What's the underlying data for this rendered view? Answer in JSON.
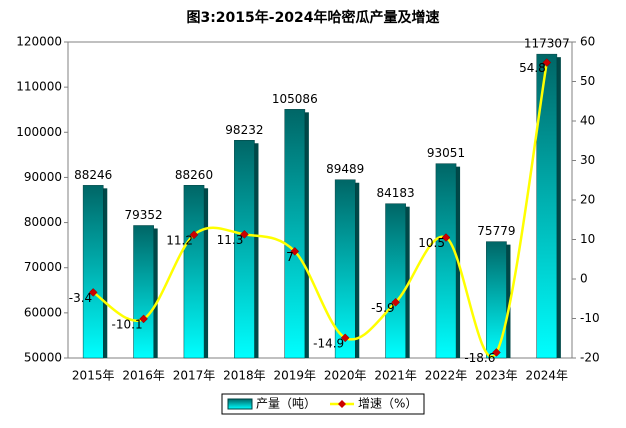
{
  "chart_data": {
    "type": "bar",
    "title": "图3:2015年-2024年哈密瓜产量及增速",
    "categories": [
      "2015年",
      "2016年",
      "2017年",
      "2018年",
      "2019年",
      "2020年",
      "2021年",
      "2022年",
      "2023年",
      "2024年"
    ],
    "series": [
      {
        "name": "产量（吨）",
        "color": "#00e5e5",
        "values": [
          88246,
          79352,
          88260,
          98232,
          105086,
          89489,
          84183,
          93051,
          75779,
          117307
        ]
      },
      {
        "name": "增速（%）",
        "color": "#ffff00",
        "marker_color": "#cc0000",
        "axis": "y2",
        "values": [
          -3.4,
          -10.1,
          11.2,
          11.3,
          7,
          -14.9,
          -5.9,
          10.5,
          -18.6,
          54.8
        ]
      }
    ],
    "ylim": [
      50000,
      120000
    ],
    "yticks": [
      50000,
      60000,
      70000,
      80000,
      90000,
      100000,
      110000,
      120000
    ],
    "y2lim": [
      -20,
      60
    ],
    "y2ticks": [
      -20,
      -10,
      0,
      10,
      20,
      30,
      40,
      50,
      60
    ]
  }
}
